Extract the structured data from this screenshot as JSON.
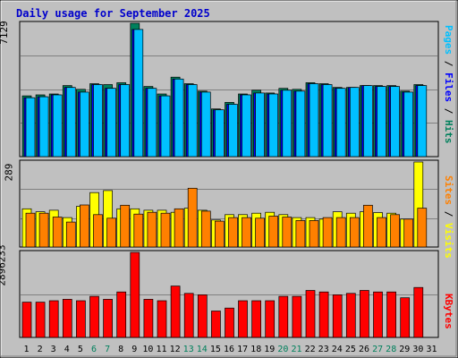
{
  "title": "Daily usage for September 2025",
  "colors": {
    "background": "#c0c0c0",
    "hits": "#00805c",
    "files": "#0000ff",
    "pages": "#00c0ff",
    "visits": "#ffff00",
    "sites": "#ff8000",
    "kbytes": "#ff0000",
    "title": "#0000cc",
    "weekend_day": "#00805c"
  },
  "right_labels": {
    "top": [
      {
        "text": "Pages",
        "color": "#00c0ff"
      },
      {
        "text": " / ",
        "color": "#000000"
      },
      {
        "text": "Files",
        "color": "#0000ff"
      },
      {
        "text": " / ",
        "color": "#000000"
      },
      {
        "text": "Hits",
        "color": "#00805c"
      }
    ],
    "middle": [
      {
        "text": "Sites",
        "color": "#ff8000"
      },
      {
        "text": " / ",
        "color": "#000000"
      },
      {
        "text": "Visits",
        "color": "#ffff00"
      }
    ],
    "bottom": [
      {
        "text": "KBytes",
        "color": "#ff0000"
      }
    ]
  },
  "chart_data": [
    {
      "type": "bar",
      "panel": "top",
      "ymax_label": "7129",
      "ylim": [
        0,
        7129
      ],
      "categories": [
        "1",
        "2",
        "3",
        "4",
        "5",
        "6",
        "7",
        "8",
        "9",
        "10",
        "11",
        "12",
        "13",
        "14",
        "15",
        "16",
        "17",
        "18",
        "19",
        "20",
        "21",
        "22",
        "23",
        "24",
        "25",
        "26",
        "27",
        "28",
        "29",
        "30",
        "31"
      ],
      "weekend_days": [
        "6",
        "7",
        "13",
        "14",
        "20",
        "21",
        "27",
        "28"
      ],
      "series": [
        {
          "name": "Hits",
          "values": [
            3250,
            3300,
            3350,
            3800,
            3600,
            3900,
            3850,
            3950,
            7129,
            3750,
            3350,
            4250,
            3900,
            3500,
            2550,
            2900,
            3350,
            3550,
            3400,
            3650,
            3600,
            3950,
            3900,
            3700,
            3700,
            3800,
            3800,
            3800,
            3500,
            3850,
            0
          ]
        },
        {
          "name": "Files",
          "values": [
            3150,
            3200,
            3300,
            3700,
            3450,
            3850,
            3650,
            3850,
            6800,
            3650,
            3250,
            4150,
            3850,
            3450,
            2500,
            2800,
            3300,
            3400,
            3350,
            3550,
            3500,
            3900,
            3850,
            3650,
            3700,
            3800,
            3750,
            3750,
            3450,
            3800,
            0
          ]
        },
        {
          "name": "Pages",
          "values": [
            3150,
            3200,
            3300,
            3700,
            3450,
            3850,
            3650,
            3850,
            6800,
            3650,
            3250,
            4150,
            3850,
            3450,
            2500,
            2800,
            3300,
            3400,
            3350,
            3550,
            3500,
            3900,
            3850,
            3650,
            3700,
            3800,
            3750,
            3750,
            3450,
            3800,
            0
          ]
        }
      ]
    },
    {
      "type": "bar",
      "panel": "middle",
      "ymax_label": "289",
      "ylim": [
        0,
        289
      ],
      "categories": [
        "1",
        "2",
        "3",
        "4",
        "5",
        "6",
        "7",
        "8",
        "9",
        "10",
        "11",
        "12",
        "13",
        "14",
        "15",
        "16",
        "17",
        "18",
        "19",
        "20",
        "21",
        "22",
        "23",
        "24",
        "25",
        "26",
        "27",
        "28",
        "29",
        "30",
        "31"
      ],
      "series": [
        {
          "name": "Visits",
          "values": [
            130,
            120,
            125,
            100,
            138,
            185,
            192,
            130,
            130,
            125,
            125,
            118,
            132,
            125,
            92,
            110,
            110,
            115,
            118,
            110,
            100,
            100,
            95,
            120,
            115,
            120,
            117,
            115,
            95,
            289,
            0
          ]
        },
        {
          "name": "Sites",
          "values": [
            115,
            115,
            102,
            85,
            143,
            110,
            98,
            142,
            112,
            118,
            115,
            130,
            200,
            122,
            88,
            100,
            100,
            98,
            105,
            102,
            90,
            90,
            100,
            100,
            100,
            142,
            100,
            110,
            95,
            132,
            0
          ]
        }
      ]
    },
    {
      "type": "bar",
      "panel": "bottom",
      "ymax_label": "2896233",
      "ylim": [
        0,
        2896233
      ],
      "categories": [
        "1",
        "2",
        "3",
        "4",
        "5",
        "6",
        "7",
        "8",
        "9",
        "10",
        "11",
        "12",
        "13",
        "14",
        "15",
        "16",
        "17",
        "18",
        "19",
        "20",
        "21",
        "22",
        "23",
        "24",
        "25",
        "26",
        "27",
        "28",
        "29",
        "30",
        "31"
      ],
      "series": [
        {
          "name": "KBytes",
          "values": [
            1200000,
            1200000,
            1250000,
            1300000,
            1250000,
            1400000,
            1300000,
            1550000,
            2896233,
            1300000,
            1250000,
            1750000,
            1500000,
            1450000,
            900000,
            1000000,
            1250000,
            1250000,
            1250000,
            1400000,
            1400000,
            1600000,
            1550000,
            1450000,
            1500000,
            1600000,
            1550000,
            1550000,
            1350000,
            1700000,
            0
          ]
        }
      ]
    }
  ]
}
